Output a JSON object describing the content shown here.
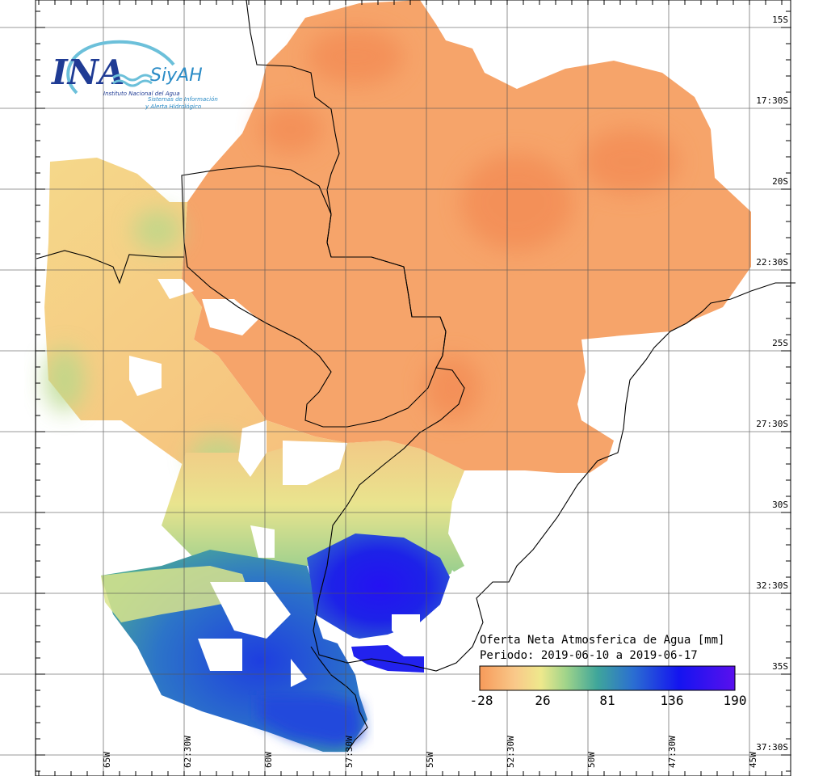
{
  "logo": {
    "acronym": "INA",
    "system": "SiyAH",
    "institute": "Instituto Nacional del Agua",
    "system_line1": "Sistemas de Información",
    "system_line2": "y Alerta Hidrológico"
  },
  "axes": {
    "lat_labels": [
      "15S",
      "17:30S",
      "20S",
      "22:30S",
      "25S",
      "27:30S",
      "30S",
      "32:30S",
      "35S",
      "37:30S"
    ],
    "lon_labels": [
      "65W",
      "62:30W",
      "60W",
      "57:30W",
      "55W",
      "52:30W",
      "50W",
      "47:30W",
      "45W"
    ]
  },
  "legend": {
    "title": "Oferta Neta Atmosferica de Agua [mm]",
    "period": "Periodo: 2019-06-10 a 2019-06-17",
    "ticks": [
      "-28",
      "26",
      "81",
      "136",
      "190"
    ],
    "colors": [
      "#f79a5a",
      "#f9c98a",
      "#eee88c",
      "#9ed38a",
      "#3fa69a",
      "#2b6fd1",
      "#1414f0",
      "#5a10ee"
    ]
  },
  "colors": {
    "dry": "#f6a064",
    "dry_light": "#f8b87c",
    "neutral": "#efe18e",
    "green": "#a7d48c",
    "teal": "#4aa79a",
    "blue": "#2b68d4",
    "deep_blue": "#1616ef"
  }
}
